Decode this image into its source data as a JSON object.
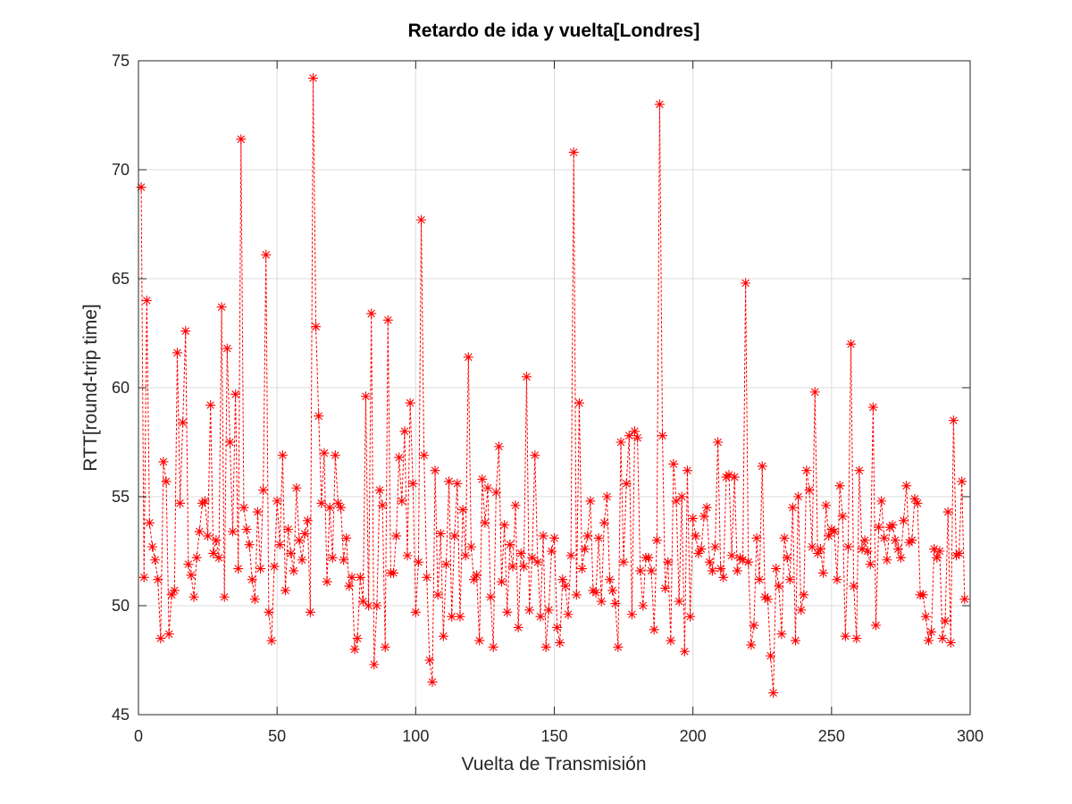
{
  "chart_data": {
    "type": "line",
    "title": "Retardo de ida y vuelta[Londres]",
    "xlabel": "Vuelta de Transmisión",
    "ylabel": "RTT[round-trip time]",
    "xlim": [
      0,
      300
    ],
    "ylim": [
      45,
      75
    ],
    "xticks": [
      0,
      50,
      100,
      150,
      200,
      250,
      300
    ],
    "yticks": [
      45,
      50,
      55,
      60,
      65,
      70,
      75
    ],
    "grid": true,
    "legend": "none",
    "series": [
      {
        "color": "#ff0000",
        "line_style": "dashed",
        "marker": "asterisk",
        "x_start": 1,
        "x_step": 1,
        "values": [
          69.2,
          51.3,
          64.0,
          53.8,
          52.7,
          52.1,
          51.2,
          48.5,
          56.6,
          55.7,
          48.7,
          50.5,
          50.7,
          61.6,
          54.7,
          58.4,
          62.6,
          51.9,
          51.4,
          50.4,
          52.2,
          53.4,
          54.7,
          54.8,
          53.2,
          59.2,
          52.4,
          53.0,
          52.2,
          63.7,
          50.4,
          61.8,
          57.5,
          53.4,
          59.7,
          51.7,
          71.4,
          54.5,
          53.5,
          52.8,
          51.2,
          50.3,
          54.3,
          51.7,
          55.3,
          66.1,
          49.7,
          48.4,
          51.8,
          54.8,
          52.8,
          56.9,
          50.7,
          53.5,
          52.4,
          51.6,
          55.4,
          53.0,
          52.1,
          53.3,
          53.9,
          49.7,
          74.2,
          62.8,
          58.7,
          54.7,
          57.0,
          51.1,
          54.5,
          52.2,
          56.9,
          54.7,
          54.5,
          52.1,
          53.1,
          50.9,
          51.3,
          48.0,
          48.5,
          51.3,
          50.2,
          59.6,
          50.0,
          63.4,
          47.3,
          50.0,
          55.3,
          54.6,
          48.1,
          63.1,
          51.5,
          51.5,
          53.2,
          56.8,
          54.8,
          58.0,
          52.3,
          59.3,
          55.6,
          49.7,
          52.0,
          67.7,
          56.9,
          51.3,
          47.5,
          46.5,
          56.2,
          50.5,
          53.3,
          48.6,
          51.9,
          55.7,
          49.5,
          53.2,
          55.6,
          49.5,
          54.4,
          52.3,
          61.4,
          52.7,
          51.2,
          51.4,
          48.4,
          55.8,
          53.8,
          55.4,
          50.4,
          48.1,
          55.2,
          57.3,
          51.1,
          53.7,
          49.7,
          52.8,
          51.8,
          54.6,
          49.0,
          52.4,
          51.8,
          60.5,
          49.8,
          52.2,
          56.9,
          52.0,
          49.5,
          53.2,
          48.1,
          49.8,
          52.5,
          53.1,
          49.0,
          48.3,
          51.2,
          50.9,
          49.6,
          52.3,
          70.8,
          50.5,
          59.3,
          51.7,
          52.6,
          53.2,
          54.8,
          50.7,
          50.6,
          53.1,
          50.2,
          53.8,
          55.0,
          51.2,
          50.7,
          50.1,
          48.1,
          57.5,
          52.0,
          55.6,
          57.8,
          49.6,
          58.0,
          57.7,
          51.6,
          50.0,
          52.2,
          52.2,
          51.6,
          48.9,
          53.0,
          73.0,
          57.8,
          50.8,
          52.0,
          48.4,
          56.5,
          54.8,
          50.2,
          55.0,
          47.9,
          56.2,
          49.5,
          54.0,
          53.2,
          52.4,
          52.6,
          54.1,
          54.5,
          52.0,
          51.6,
          52.7,
          57.5,
          51.7,
          51.3,
          55.9,
          56.0,
          52.3,
          55.9,
          51.6,
          52.2,
          52.1,
          64.8,
          52.0,
          48.2,
          49.1,
          53.1,
          51.2,
          56.4,
          50.4,
          50.3,
          47.7,
          46.0,
          51.7,
          50.9,
          48.7,
          53.1,
          52.2,
          51.2,
          54.5,
          48.4,
          55.0,
          49.8,
          50.5,
          56.2,
          55.3,
          52.7,
          59.8,
          52.4,
          52.6,
          51.5,
          54.6,
          53.2,
          53.5,
          53.4,
          51.2,
          55.5,
          54.1,
          48.6,
          52.7,
          62.0,
          50.9,
          48.5,
          56.2,
          52.6,
          53.0,
          52.5,
          51.9,
          59.1,
          49.1,
          53.6,
          54.8,
          53.1,
          52.1,
          53.6,
          53.7,
          53.0,
          52.6,
          52.2,
          53.9,
          55.5,
          52.9,
          53.0,
          54.9,
          54.7,
          50.5,
          50.5,
          49.5,
          48.4,
          48.8,
          52.6,
          52.2,
          52.5,
          48.5,
          49.3,
          54.3,
          48.3,
          58.5,
          52.3,
          52.4,
          55.7,
          50.3
        ]
      }
    ]
  }
}
